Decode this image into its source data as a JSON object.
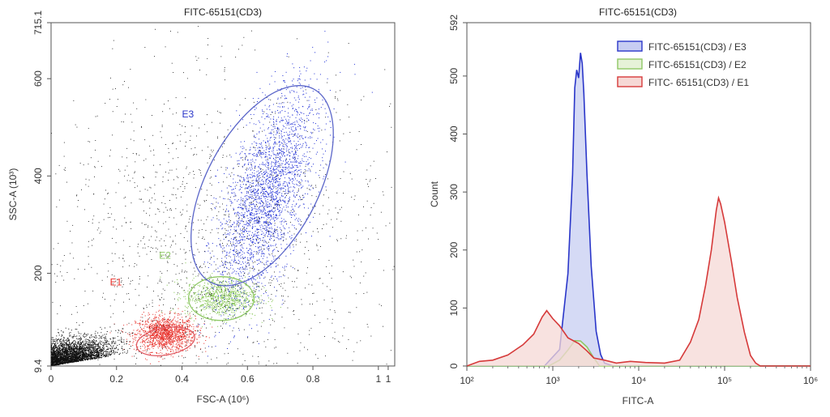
{
  "chart_data": [
    {
      "type": "scatter",
      "title": "FITC-65151(CD3)",
      "xlabel": "FSC-A (10⁶)",
      "ylabel": "SSC-A (10³)",
      "xlim": [
        0,
        1.05
      ],
      "ylim": [
        9.4,
        715.1
      ],
      "x_ticks": [
        "0",
        "0.2",
        "0.4",
        "0.6",
        "0.8",
        "1",
        "1"
      ],
      "y_ticks": [
        "9.4",
        "200",
        "400",
        "600",
        "715.1"
      ],
      "grid": false,
      "populations": [
        {
          "name": "E1",
          "color": "#e8302a",
          "center": [
            0.35,
            75
          ],
          "spread": [
            0.045,
            18
          ],
          "count": 1400
        },
        {
          "name": "E2",
          "color": "#7ec24a",
          "center": [
            0.52,
            150
          ],
          "spread": [
            0.055,
            20
          ],
          "count": 900
        },
        {
          "name": "E3",
          "color": "#1f2fd6",
          "center": [
            0.66,
            360
          ],
          "spread": [
            0.075,
            85
          ],
          "count": 2600
        },
        {
          "name": "debris",
          "color": "#111111",
          "center": [
            0.1,
            50
          ],
          "spread": [
            0.07,
            25
          ],
          "count": 3000
        },
        {
          "name": "background",
          "color": "#111111",
          "center": [
            0.5,
            260
          ],
          "spread": [
            0.28,
            170
          ],
          "count": 1700
        }
      ],
      "gates": [
        {
          "name": "E1",
          "color": "#e05a62",
          "center": [
            0.35,
            60
          ],
          "rx": 0.09,
          "ry": 28,
          "angle": -10
        },
        {
          "name": "E2",
          "color": "#8fc865",
          "center": [
            0.52,
            148
          ],
          "rx": 0.1,
          "ry": 45,
          "angle": 0
        },
        {
          "name": "E3",
          "color": "#5b66c9",
          "center": [
            0.645,
            380
          ],
          "rx": 0.17,
          "ry": 225,
          "angle": 28
        }
      ],
      "annotations": [
        {
          "text": "E1",
          "x": 0.18,
          "y": 175,
          "color": "#e8302a"
        },
        {
          "text": "E2",
          "x": 0.33,
          "y": 230,
          "color": "#8fc865"
        },
        {
          "text": "E3",
          "x": 0.4,
          "y": 520,
          "color": "#2a36c9"
        }
      ]
    },
    {
      "type": "area",
      "title": "FITC-65151(CD3)",
      "xlabel": "FITC-A",
      "ylabel": "Count",
      "xscale": "log",
      "xlim": [
        100,
        1000000
      ],
      "ylim": [
        0,
        592
      ],
      "x_tick_values": [
        100,
        1000,
        10000,
        100000,
        1000000
      ],
      "x_ticks": [
        "10²",
        "10³",
        "10⁴",
        "10⁵",
        "10⁶"
      ],
      "y_ticks": [
        "0",
        "100",
        "200",
        "300",
        "400",
        "500",
        "592"
      ],
      "legend": "top-right",
      "series": [
        {
          "name": "FITC-65151(CD3) / E3",
          "color": "#2a36c9",
          "fill": "#c7cdf2",
          "x": [
            100,
            800,
            1200,
            1500,
            1700,
            1800,
            1900,
            2000,
            2100,
            2200,
            2300,
            2500,
            2800,
            3200,
            3600,
            4000,
            5000,
            1000000
          ],
          "y": [
            0,
            0,
            30,
            160,
            330,
            480,
            510,
            495,
            540,
            520,
            470,
            330,
            170,
            60,
            20,
            5,
            0,
            0
          ]
        },
        {
          "name": "FITC-65151(CD3) / E2",
          "color": "#8fc865",
          "fill": "#e6f2d8",
          "x": [
            100,
            900,
            1200,
            1500,
            1800,
            2100,
            2500,
            3000,
            3500,
            1000000
          ],
          "y": [
            0,
            0,
            12,
            28,
            42,
            44,
            34,
            15,
            0,
            0
          ]
        },
        {
          "name": "FITC- 65151(CD3) / E1",
          "color": "#d63a3a",
          "fill": "#f6d8d5",
          "x": [
            100,
            140,
            200,
            300,
            450,
            600,
            750,
            850,
            1000,
            1200,
            1500,
            2000,
            2500,
            3000,
            4000,
            5500,
            8000,
            12000,
            20000,
            30000,
            40000,
            50000,
            60000,
            70000,
            80000,
            85000,
            90000,
            100000,
            120000,
            140000,
            170000,
            200000,
            230000,
            260000,
            1000000
          ],
          "y": [
            0,
            8,
            10,
            20,
            35,
            55,
            85,
            95,
            80,
            70,
            50,
            40,
            25,
            15,
            10,
            5,
            8,
            6,
            5,
            10,
            40,
            80,
            140,
            200,
            270,
            290,
            280,
            250,
            180,
            120,
            60,
            20,
            5,
            0,
            0
          ]
        }
      ]
    }
  ]
}
